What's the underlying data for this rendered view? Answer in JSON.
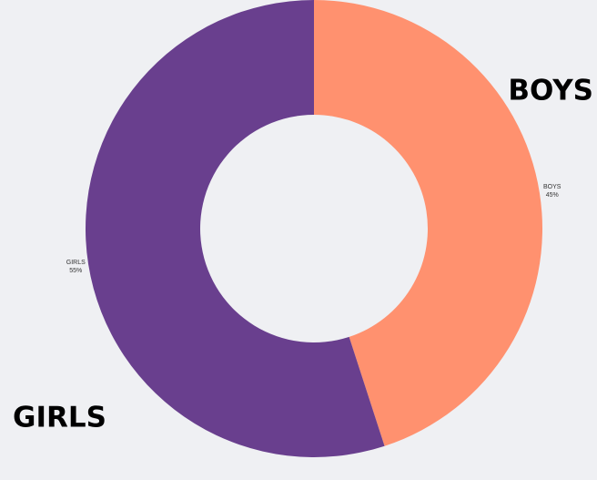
{
  "chart_data": {
    "type": "donut",
    "categories": [
      "BOYS",
      "GIRLS"
    ],
    "values": [
      45,
      55
    ],
    "value_labels": [
      "45%",
      "55%"
    ],
    "colors": [
      "#ff916f",
      "#693f8e"
    ],
    "annotations": [
      "BOYS",
      "GIRLS"
    ]
  }
}
